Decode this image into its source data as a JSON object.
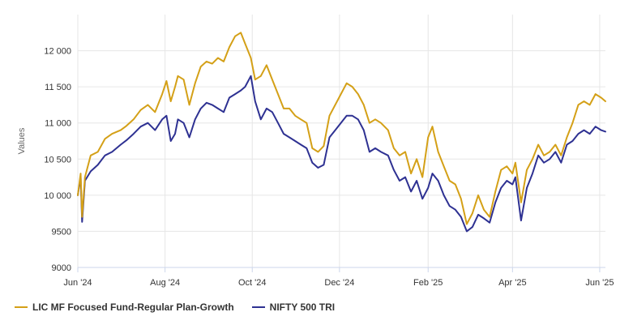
{
  "chart_data": {
    "type": "line",
    "title": "",
    "xlabel": "",
    "ylabel": "Values",
    "ylim": [
      9000,
      12500
    ],
    "yticks": [
      9000,
      9500,
      10000,
      10500,
      11000,
      11500,
      12000
    ],
    "ytick_labels": [
      "9000",
      "9500",
      "10 000",
      "10 500",
      "11 000",
      "11 500",
      "12 000"
    ],
    "xlim": [
      "2024-06-01",
      "2025-06-05"
    ],
    "xticks": [
      "2024-06-01",
      "2024-08-01",
      "2024-10-01",
      "2024-12-01",
      "2025-02-01",
      "2025-04-01",
      "2025-06-01"
    ],
    "xtick_labels": [
      "Jun '24",
      "Aug '24",
      "Oct '24",
      "Dec '24",
      "Feb '25",
      "Apr '25",
      "Jun '25"
    ],
    "grid": true,
    "legend_position": "bottom-left",
    "series": [
      {
        "name": "LIC MF Focused Fund-Regular Plan-Growth",
        "color": "#D4A017",
        "points": [
          [
            "2024-06-01",
            10000
          ],
          [
            "2024-06-03",
            10300
          ],
          [
            "2024-06-04",
            9700
          ],
          [
            "2024-06-06",
            10250
          ],
          [
            "2024-06-10",
            10550
          ],
          [
            "2024-06-15",
            10600
          ],
          [
            "2024-06-20",
            10780
          ],
          [
            "2024-06-25",
            10850
          ],
          [
            "2024-07-01",
            10900
          ],
          [
            "2024-07-05",
            10960
          ],
          [
            "2024-07-10",
            11050
          ],
          [
            "2024-07-15",
            11180
          ],
          [
            "2024-07-20",
            11250
          ],
          [
            "2024-07-25",
            11150
          ],
          [
            "2024-07-30",
            11400
          ],
          [
            "2024-08-02",
            11580
          ],
          [
            "2024-08-05",
            11300
          ],
          [
            "2024-08-08",
            11500
          ],
          [
            "2024-08-10",
            11650
          ],
          [
            "2024-08-14",
            11600
          ],
          [
            "2024-08-18",
            11250
          ],
          [
            "2024-08-22",
            11550
          ],
          [
            "2024-08-26",
            11780
          ],
          [
            "2024-08-30",
            11850
          ],
          [
            "2024-09-03",
            11820
          ],
          [
            "2024-09-07",
            11900
          ],
          [
            "2024-09-11",
            11850
          ],
          [
            "2024-09-15",
            12050
          ],
          [
            "2024-09-19",
            12200
          ],
          [
            "2024-09-23",
            12250
          ],
          [
            "2024-09-26",
            12100
          ],
          [
            "2024-09-30",
            11900
          ],
          [
            "2024-10-03",
            11600
          ],
          [
            "2024-10-07",
            11650
          ],
          [
            "2024-10-11",
            11800
          ],
          [
            "2024-10-15",
            11600
          ],
          [
            "2024-10-19",
            11400
          ],
          [
            "2024-10-23",
            11200
          ],
          [
            "2024-10-27",
            11200
          ],
          [
            "2024-10-31",
            11100
          ],
          [
            "2024-11-04",
            11050
          ],
          [
            "2024-11-08",
            11000
          ],
          [
            "2024-11-12",
            10650
          ],
          [
            "2024-11-16",
            10600
          ],
          [
            "2024-11-20",
            10680
          ],
          [
            "2024-11-24",
            11100
          ],
          [
            "2024-11-28",
            11250
          ],
          [
            "2024-12-02",
            11400
          ],
          [
            "2024-12-06",
            11550
          ],
          [
            "2024-12-10",
            11500
          ],
          [
            "2024-12-14",
            11400
          ],
          [
            "2024-12-18",
            11250
          ],
          [
            "2024-12-22",
            11000
          ],
          [
            "2024-12-26",
            11050
          ],
          [
            "2024-12-30",
            11000
          ],
          [
            "2025-01-04",
            10900
          ],
          [
            "2025-01-08",
            10650
          ],
          [
            "2025-01-12",
            10550
          ],
          [
            "2025-01-16",
            10600
          ],
          [
            "2025-01-20",
            10300
          ],
          [
            "2025-01-24",
            10500
          ],
          [
            "2025-01-28",
            10250
          ],
          [
            "2025-02-01",
            10800
          ],
          [
            "2025-02-04",
            10950
          ],
          [
            "2025-02-08",
            10600
          ],
          [
            "2025-02-12",
            10400
          ],
          [
            "2025-02-16",
            10200
          ],
          [
            "2025-02-20",
            10150
          ],
          [
            "2025-02-24",
            9950
          ],
          [
            "2025-02-28",
            9600
          ],
          [
            "2025-03-04",
            9750
          ],
          [
            "2025-03-08",
            10000
          ],
          [
            "2025-03-12",
            9800
          ],
          [
            "2025-03-16",
            9700
          ],
          [
            "2025-03-20",
            10050
          ],
          [
            "2025-03-24",
            10350
          ],
          [
            "2025-03-28",
            10400
          ],
          [
            "2025-04-01",
            10300
          ],
          [
            "2025-04-03",
            10450
          ],
          [
            "2025-04-07",
            9900
          ],
          [
            "2025-04-11",
            10350
          ],
          [
            "2025-04-15",
            10500
          ],
          [
            "2025-04-19",
            10700
          ],
          [
            "2025-04-23",
            10550
          ],
          [
            "2025-04-27",
            10600
          ],
          [
            "2025-05-01",
            10700
          ],
          [
            "2025-05-05",
            10550
          ],
          [
            "2025-05-09",
            10800
          ],
          [
            "2025-05-13",
            11000
          ],
          [
            "2025-05-17",
            11250
          ],
          [
            "2025-05-21",
            11300
          ],
          [
            "2025-05-25",
            11250
          ],
          [
            "2025-05-29",
            11400
          ],
          [
            "2025-06-02",
            11350
          ],
          [
            "2025-06-05",
            11300
          ]
        ]
      },
      {
        "name": "NIFTY 500 TRI",
        "color": "#2E3192",
        "points": [
          [
            "2024-06-01",
            10000
          ],
          [
            "2024-06-03",
            10250
          ],
          [
            "2024-06-04",
            9630
          ],
          [
            "2024-06-06",
            10200
          ],
          [
            "2024-06-10",
            10330
          ],
          [
            "2024-06-15",
            10420
          ],
          [
            "2024-06-20",
            10550
          ],
          [
            "2024-06-25",
            10600
          ],
          [
            "2024-07-01",
            10700
          ],
          [
            "2024-07-05",
            10760
          ],
          [
            "2024-07-10",
            10850
          ],
          [
            "2024-07-15",
            10950
          ],
          [
            "2024-07-20",
            11000
          ],
          [
            "2024-07-25",
            10900
          ],
          [
            "2024-07-30",
            11050
          ],
          [
            "2024-08-02",
            11100
          ],
          [
            "2024-08-05",
            10750
          ],
          [
            "2024-08-08",
            10850
          ],
          [
            "2024-08-10",
            11050
          ],
          [
            "2024-08-14",
            11000
          ],
          [
            "2024-08-18",
            10800
          ],
          [
            "2024-08-22",
            11050
          ],
          [
            "2024-08-26",
            11200
          ],
          [
            "2024-08-30",
            11280
          ],
          [
            "2024-09-03",
            11250
          ],
          [
            "2024-09-07",
            11200
          ],
          [
            "2024-09-11",
            11150
          ],
          [
            "2024-09-15",
            11350
          ],
          [
            "2024-09-19",
            11400
          ],
          [
            "2024-09-23",
            11450
          ],
          [
            "2024-09-26",
            11500
          ],
          [
            "2024-09-30",
            11650
          ],
          [
            "2024-10-03",
            11300
          ],
          [
            "2024-10-07",
            11050
          ],
          [
            "2024-10-11",
            11200
          ],
          [
            "2024-10-15",
            11150
          ],
          [
            "2024-10-19",
            11000
          ],
          [
            "2024-10-23",
            10850
          ],
          [
            "2024-10-27",
            10800
          ],
          [
            "2024-10-31",
            10750
          ],
          [
            "2024-11-04",
            10700
          ],
          [
            "2024-11-08",
            10650
          ],
          [
            "2024-11-12",
            10450
          ],
          [
            "2024-11-16",
            10380
          ],
          [
            "2024-11-20",
            10420
          ],
          [
            "2024-11-24",
            10800
          ],
          [
            "2024-11-28",
            10900
          ],
          [
            "2024-12-02",
            11000
          ],
          [
            "2024-12-06",
            11100
          ],
          [
            "2024-12-10",
            11100
          ],
          [
            "2024-12-14",
            11050
          ],
          [
            "2024-12-18",
            10900
          ],
          [
            "2024-12-22",
            10600
          ],
          [
            "2024-12-26",
            10650
          ],
          [
            "2024-12-30",
            10600
          ],
          [
            "2025-01-04",
            10550
          ],
          [
            "2025-01-08",
            10350
          ],
          [
            "2025-01-12",
            10200
          ],
          [
            "2025-01-16",
            10250
          ],
          [
            "2025-01-20",
            10050
          ],
          [
            "2025-01-24",
            10200
          ],
          [
            "2025-01-28",
            9950
          ],
          [
            "2025-02-01",
            10100
          ],
          [
            "2025-02-04",
            10300
          ],
          [
            "2025-02-08",
            10200
          ],
          [
            "2025-02-12",
            10000
          ],
          [
            "2025-02-16",
            9850
          ],
          [
            "2025-02-20",
            9800
          ],
          [
            "2025-02-24",
            9700
          ],
          [
            "2025-02-28",
            9500
          ],
          [
            "2025-03-04",
            9560
          ],
          [
            "2025-03-08",
            9730
          ],
          [
            "2025-03-12",
            9680
          ],
          [
            "2025-03-16",
            9620
          ],
          [
            "2025-03-20",
            9900
          ],
          [
            "2025-03-24",
            10100
          ],
          [
            "2025-03-28",
            10200
          ],
          [
            "2025-04-01",
            10150
          ],
          [
            "2025-04-03",
            10250
          ],
          [
            "2025-04-07",
            9650
          ],
          [
            "2025-04-11",
            10100
          ],
          [
            "2025-04-15",
            10300
          ],
          [
            "2025-04-19",
            10550
          ],
          [
            "2025-04-23",
            10450
          ],
          [
            "2025-04-27",
            10500
          ],
          [
            "2025-05-01",
            10600
          ],
          [
            "2025-05-05",
            10450
          ],
          [
            "2025-05-09",
            10700
          ],
          [
            "2025-05-13",
            10750
          ],
          [
            "2025-05-17",
            10850
          ],
          [
            "2025-05-21",
            10900
          ],
          [
            "2025-05-25",
            10850
          ],
          [
            "2025-05-29",
            10950
          ],
          [
            "2025-06-02",
            10900
          ],
          [
            "2025-06-05",
            10880
          ]
        ]
      }
    ]
  }
}
